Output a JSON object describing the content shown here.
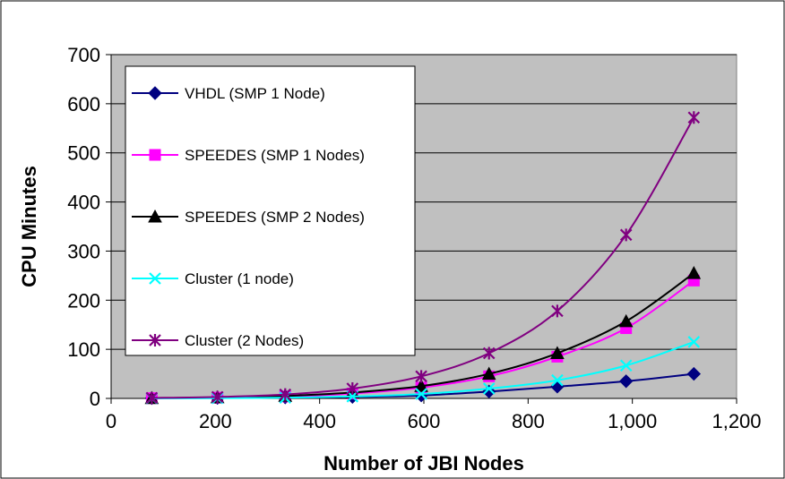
{
  "chart_data": {
    "type": "line",
    "title": "",
    "xlabel": "Number of JBI Nodes",
    "ylabel": "CPU Minutes",
    "xlim": [
      0,
      1200
    ],
    "ylim": [
      0,
      700
    ],
    "x_ticks": [
      0,
      200,
      400,
      600,
      800,
      1000,
      1200
    ],
    "x_tick_labels": [
      "0",
      "200",
      "400",
      "600",
      "800",
      "1,000",
      "1,200"
    ],
    "y_ticks": [
      0,
      100,
      200,
      300,
      400,
      500,
      600,
      700
    ],
    "y_tick_labels": [
      "0",
      "100",
      "200",
      "300",
      "400",
      "500",
      "600",
      "700"
    ],
    "grid": "horizontal",
    "plot_background": "#c0c0c0",
    "legend_position": "left",
    "x": [
      78,
      204,
      334,
      463,
      595,
      725,
      856,
      988,
      1118
    ],
    "series": [
      {
        "name": "VHDL (SMP 1 Node)",
        "color": "#000080",
        "marker": "diamond",
        "values": [
          0.5,
          1,
          2,
          3,
          6,
          14,
          24,
          35,
          50
        ]
      },
      {
        "name": "SPEEDES (SMP 1 Nodes)",
        "color": "#ff00ff",
        "marker": "square",
        "values": [
          0.5,
          1.5,
          4,
          10,
          22,
          45,
          85,
          143,
          240
        ]
      },
      {
        "name": "SPEEDES (SMP 2 Nodes)",
        "color": "#000000",
        "marker": "triangle",
        "values": [
          0.5,
          2,
          5,
          12,
          25,
          50,
          92,
          157,
          255
        ]
      },
      {
        "name": "Cluster (1 node)",
        "color": "#00ffff",
        "marker": "x",
        "values": [
          0.2,
          0.5,
          1.5,
          4,
          9,
          20,
          37,
          67,
          115
        ]
      },
      {
        "name": "Cluster (2 Nodes)",
        "color": "#800080",
        "marker": "star",
        "values": [
          1,
          3,
          8,
          20,
          45,
          92,
          178,
          333,
          572
        ]
      }
    ]
  }
}
